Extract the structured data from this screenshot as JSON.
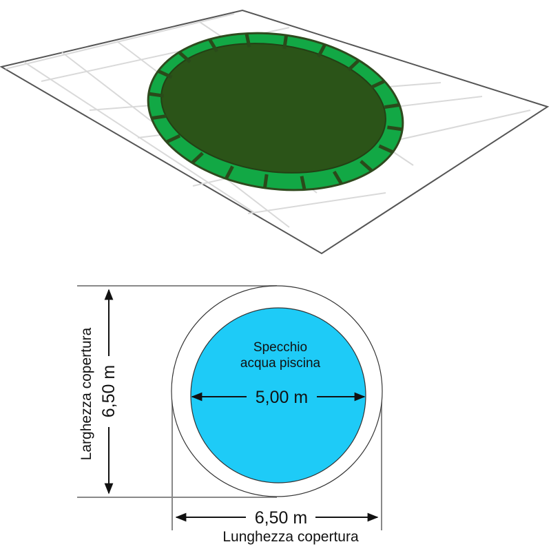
{
  "pool_label_line1": "Specchio",
  "pool_label_line2": "acqua piscina",
  "pool_diameter": "5,00 m",
  "cover_width_value": "6,50 m",
  "cover_width_label": "Larghezza copertura",
  "cover_length_value": "6,50 m",
  "cover_length_label": "Lunghezza copertura",
  "colors": {
    "water": "#1ecbf7",
    "cover_dark": "#2b5418",
    "cover_rim": "#12a845",
    "grid": "#d9d9d9"
  }
}
